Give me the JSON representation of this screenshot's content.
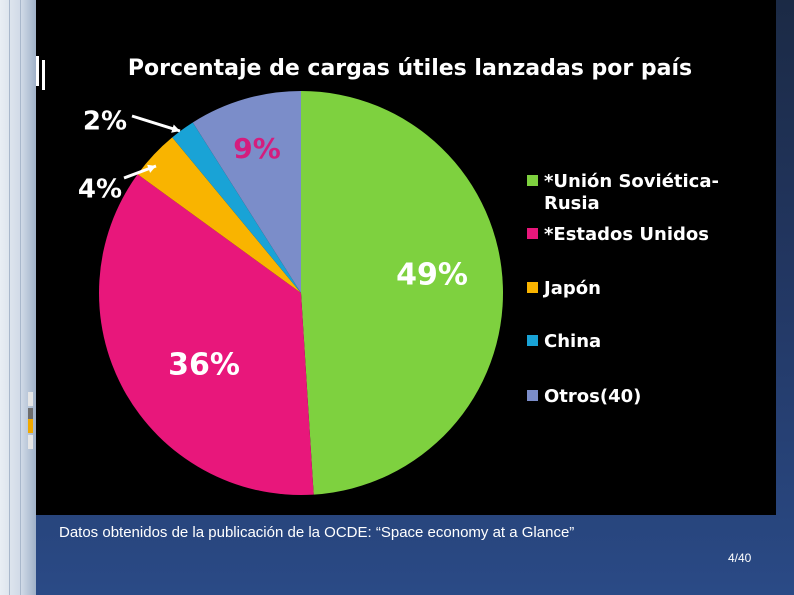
{
  "chart_data": {
    "type": "pie",
    "title": "Porcentaje de cargas útiles lanzadas por país",
    "categories": [
      "*Unión Soviética-Rusia",
      "*Estados Unidos",
      "Japón",
      "China",
      "Otros(40)"
    ],
    "values": [
      49,
      36,
      4,
      2,
      9
    ],
    "labels": [
      "49%",
      "36%",
      "4%",
      "2%",
      "9%"
    ],
    "colors": [
      "#7ed13f",
      "#e8177b",
      "#f9b400",
      "#19a3d6",
      "#7b8dc9"
    ],
    "legend_position": "right"
  },
  "footer": {
    "caption": "Datos obtenidos de la publicación de la OCDE: “Space economy at a Glance”",
    "page": "4/40"
  }
}
